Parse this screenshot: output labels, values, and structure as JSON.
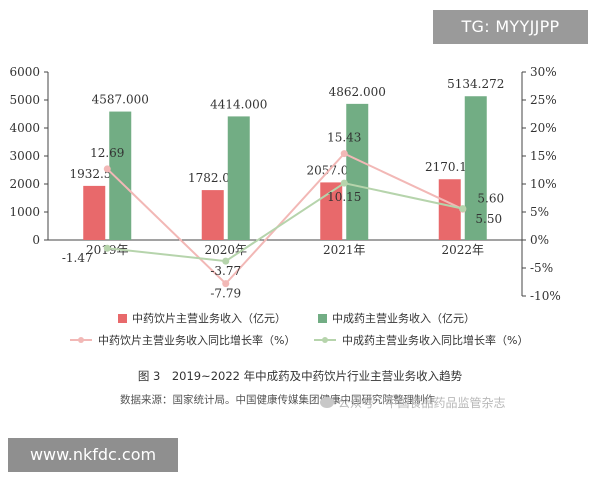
{
  "chart_data": {
    "type": "bar",
    "categories": [
      "2019年",
      "2020年",
      "2021年",
      "2022年"
    ],
    "series": [
      {
        "name": "中药饮片主营业务收入（亿元）",
        "type": "bar",
        "axis": "left",
        "color": "#e8696b",
        "values": [
          1932.5,
          1782.0,
          2057.0,
          2170.14
        ],
        "labels": [
          "1932.50",
          "1782.00",
          "2057.00",
          "2170.14"
        ]
      },
      {
        "name": "中成药主营业务收入（亿元）",
        "type": "bar",
        "axis": "left",
        "color": "#72ad84",
        "values": [
          4587.0,
          4414.0,
          4862.0,
          5134.272
        ],
        "labels": [
          "4587.000",
          "4414.000",
          "4862.000",
          "5134.272"
        ]
      },
      {
        "name": "中药饮片主营业务收入同比增长率（%）",
        "type": "line",
        "axis": "right",
        "color": "#f2b8b6",
        "values": [
          12.69,
          -7.79,
          15.43,
          5.5
        ],
        "labels": [
          "12.69",
          "-7.79",
          "15.43",
          "5.50"
        ]
      },
      {
        "name": "中成药主营业务收入同比增长率（%）",
        "type": "line",
        "axis": "right",
        "color": "#b6d4ac",
        "values": [
          -1.47,
          -3.77,
          10.15,
          5.6
        ],
        "labels": [
          "-1.47",
          "-3.77",
          "10.15",
          "5.60"
        ]
      }
    ],
    "ylim_left": [
      0,
      6000
    ],
    "yticks_left": [
      "0",
      "1000",
      "2000",
      "3000",
      "4000",
      "5000",
      "6000"
    ],
    "ylim_right": [
      -10,
      30
    ],
    "yticks_right": [
      "-10%",
      "-5%",
      "0%",
      "5%",
      "10%",
      "15%",
      "20%",
      "25%",
      "30%"
    ],
    "legend_position": "bottom",
    "grid": false,
    "xlabel": "",
    "ylabel": ""
  },
  "caption": "图 3　2019~2022 年中成药及中药饮片行业主营业务收入趋势",
  "source_note": "数据来源：国家统计局。中国健康传媒集团健康中国研究院整理制作",
  "watermark": "公众号 · 中国食品药品监管杂志",
  "tag_text": "TG: MYYJJPP",
  "url_text": "www.nkfdc.com"
}
